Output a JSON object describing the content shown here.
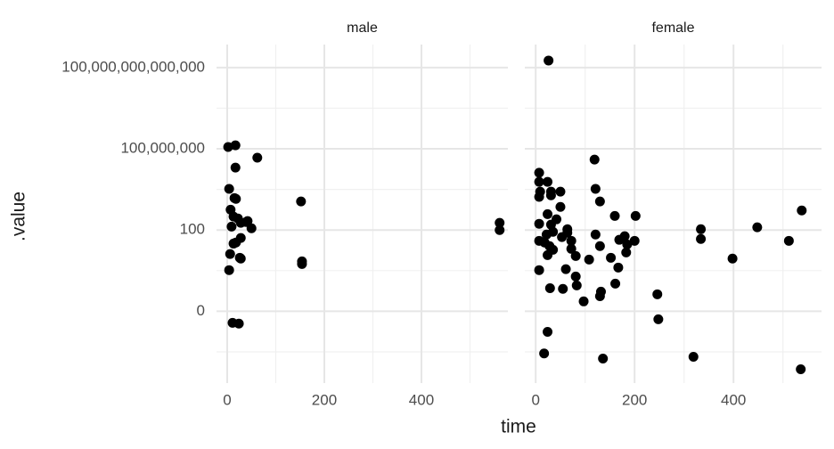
{
  "chart_data": {
    "type": "scatter",
    "x_label": "time",
    "y_label": ".value",
    "y_scale": "pseudo_log",
    "y_sigma": 0.0001,
    "grid": true,
    "color": "#000000",
    "xlim": [
      -22,
      578
    ],
    "xticks": [
      0,
      200,
      400
    ],
    "minor_xticks": [
      100,
      300,
      500
    ],
    "ylim": [
      -20,
      5000000000000000
    ],
    "yticks": [
      0,
      100,
      {
        "value": 100000000,
        "label": "100,000,000"
      },
      {
        "value": 100000000000000,
        "label": "100,000,000,000,000"
      }
    ],
    "minor_yticks": [
      -0.1,
      0.1,
      100000,
      100000000000
    ],
    "facets": [
      {
        "title": "male",
        "x": [
          2,
          17,
          17,
          62,
          4,
          15,
          18,
          7,
          13,
          22,
          39,
          28,
          42,
          9,
          13,
          18,
          28,
          6,
          26,
          28,
          4,
          50,
          152,
          24,
          11,
          561,
          561,
          154,
          154
        ],
        "y": [
          135000000,
          180000000,
          4100000,
          22000000,
          110000,
          23000,
          20000,
          3200,
          980,
          720,
          390,
          340,
          460,
          180,
          10,
          12,
          26,
          1.7,
          0.9,
          0.78,
          0.11,
          135,
          13000,
          -0.0008,
          -0.0007,
          340,
          100,
          0.49,
          0.31
        ]
      },
      {
        "title": "female",
        "x": [
          26,
          119,
          7,
          24,
          7,
          9,
          31,
          31,
          7,
          130,
          121,
          24,
          7,
          31,
          42,
          35,
          64,
          7,
          18,
          28,
          35,
          53,
          64,
          72,
          72,
          121,
          108,
          81,
          130,
          152,
          160,
          169,
          202,
          180,
          200,
          185,
          183,
          167,
          161,
          61,
          81,
          97,
          55,
          29,
          24,
          17,
          132,
          83,
          24,
          7,
          130,
          246,
          248,
          136,
          319,
          334,
          334,
          398,
          448,
          512,
          536,
          538,
          22,
          50,
          50
        ],
        "y": [
          330000000000000,
          16000000,
          1700000,
          360000,
          360000,
          68000,
          68000,
          37000,
          28000,
          13000,
          110000,
          1500,
          290,
          250,
          620,
          74,
          115,
          16,
          12,
          6.5,
          3.5,
          30,
          63,
          16,
          4.1,
          47,
          0.66,
          1.2,
          6.5,
          0.9,
          1100,
          19,
          1100,
          35,
          16,
          8.7,
          2.2,
          0.17,
          0.011,
          0.13,
          0.037,
          0.00052,
          0.0045,
          0.0051,
          -0.0033,
          -0.13,
          0.0028,
          0.0081,
          1.4,
          0.11,
          0.0013,
          0.0018,
          -0.00036,
          -0.31,
          -0.23,
          22,
          115,
          0.78,
          160,
          16,
          -1.9,
          2800,
          47,
          5100,
          68000
        ]
      }
    ]
  }
}
